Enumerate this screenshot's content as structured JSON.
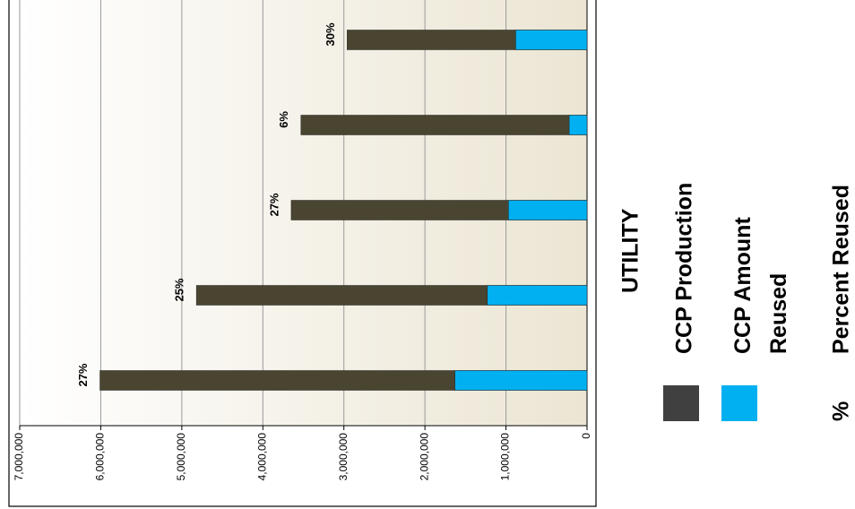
{
  "chart_data": {
    "type": "bar",
    "orientation": "horizontal-reversed",
    "categories": [
      null,
      null,
      null,
      null,
      null
    ],
    "series": [
      {
        "name": "CCP Production",
        "color": "#4a4530",
        "legend_color": "#404040",
        "values": [
          2960000,
          3530000,
          3650000,
          4820000,
          6010000
        ]
      },
      {
        "name": "CCP Amount Reused",
        "color": "#00b0f0",
        "legend_color": "#00b0f0",
        "values": [
          880000,
          220000,
          970000,
          1230000,
          1630000
        ]
      },
      {
        "name": "Percent Reused",
        "legend_symbol": "%",
        "values": [
          30,
          6,
          27,
          25,
          27
        ],
        "value_labels": [
          "30%",
          "6%",
          "27%",
          "25%",
          "27%"
        ]
      }
    ],
    "legend_title": "UTILITY",
    "xlim": [
      0,
      7000000
    ],
    "xticks": [
      0,
      {
        "value": 1000000,
        "label": "1,000,000"
      },
      {
        "value": 2000000,
        "label": "2,000,000"
      },
      {
        "value": 3000000,
        "label": "3,000,000"
      },
      {
        "value": 4000000,
        "label": "4,000,000"
      },
      {
        "value": 5000000,
        "label": "5,000,000"
      },
      {
        "value": 6000000,
        "label": "6,000,000"
      },
      {
        "value": 7000000,
        "label": "7,000,000"
      }
    ],
    "grid": true
  }
}
